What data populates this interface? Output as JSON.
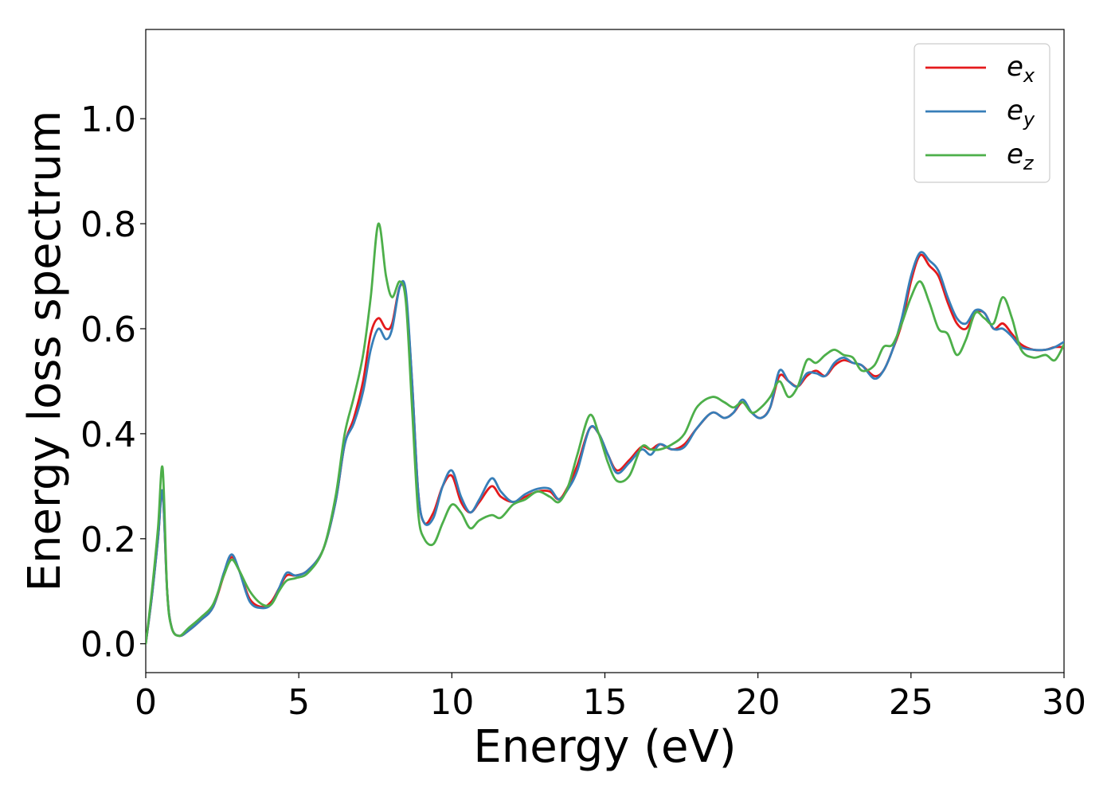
{
  "chart_data": {
    "type": "line",
    "title": "",
    "xlabel": "Energy (eV)",
    "ylabel": "Energy loss spectrum",
    "xlim": [
      0,
      30
    ],
    "ylim": [
      -0.055,
      1.17
    ],
    "xticks": [
      0,
      5,
      10,
      15,
      20,
      25,
      30
    ],
    "xtick_labels": [
      "0",
      "5",
      "10",
      "15",
      "20",
      "25",
      "30"
    ],
    "yticks": [
      0.0,
      0.2,
      0.4,
      0.6,
      0.8,
      1.0
    ],
    "ytick_labels": [
      "0.0",
      "0.2",
      "0.4",
      "0.6",
      "0.8",
      "1.0"
    ],
    "grid": false,
    "legend_position": "top-right",
    "series": [
      {
        "name": "e_x",
        "legend_base": "e",
        "legend_sub": "x",
        "color": "#e41a1c",
        "x": [
          0,
          0.2,
          0.4,
          0.55,
          0.7,
          0.85,
          1.1,
          1.4,
          1.8,
          2.2,
          2.55,
          2.8,
          3.05,
          3.4,
          3.8,
          4.1,
          4.35,
          4.6,
          4.9,
          5.3,
          5.8,
          6.2,
          6.5,
          6.8,
          7.1,
          7.35,
          7.6,
          7.85,
          8.05,
          8.3,
          8.5,
          8.7,
          8.9,
          9.1,
          9.4,
          9.7,
          10.0,
          10.3,
          10.6,
          10.9,
          11.3,
          11.6,
          12.0,
          12.4,
          12.8,
          13.2,
          13.5,
          13.8,
          14.1,
          14.5,
          14.8,
          15.1,
          15.4,
          15.8,
          16.2,
          16.5,
          16.8,
          17.2,
          17.6,
          18.0,
          18.5,
          18.9,
          19.2,
          19.5,
          19.8,
          20.1,
          20.4,
          20.7,
          21.0,
          21.3,
          21.6,
          21.9,
          22.2,
          22.5,
          22.8,
          23.1,
          23.4,
          23.8,
          24.1,
          24.4,
          24.7,
          25.0,
          25.3,
          25.6,
          25.9,
          26.2,
          26.5,
          26.8,
          27.1,
          27.4,
          27.7,
          28.0,
          28.3,
          28.6,
          29.0,
          29.4,
          29.7,
          30.0
        ],
        "y": [
          0.0,
          0.09,
          0.2,
          0.29,
          0.1,
          0.03,
          0.015,
          0.025,
          0.045,
          0.07,
          0.13,
          0.165,
          0.14,
          0.085,
          0.07,
          0.08,
          0.105,
          0.13,
          0.13,
          0.14,
          0.18,
          0.27,
          0.38,
          0.43,
          0.5,
          0.59,
          0.62,
          0.6,
          0.61,
          0.68,
          0.66,
          0.5,
          0.29,
          0.23,
          0.25,
          0.3,
          0.32,
          0.27,
          0.25,
          0.27,
          0.3,
          0.28,
          0.27,
          0.28,
          0.29,
          0.29,
          0.275,
          0.3,
          0.34,
          0.41,
          0.4,
          0.36,
          0.33,
          0.35,
          0.375,
          0.37,
          0.38,
          0.37,
          0.38,
          0.41,
          0.44,
          0.43,
          0.44,
          0.46,
          0.44,
          0.43,
          0.45,
          0.51,
          0.5,
          0.49,
          0.51,
          0.52,
          0.51,
          0.53,
          0.54,
          0.535,
          0.53,
          0.51,
          0.52,
          0.56,
          0.61,
          0.69,
          0.74,
          0.72,
          0.7,
          0.65,
          0.61,
          0.6,
          0.63,
          0.63,
          0.6,
          0.61,
          0.59,
          0.57,
          0.56,
          0.56,
          0.565,
          0.565
        ]
      },
      {
        "name": "e_y",
        "legend_base": "e",
        "legend_sub": "y",
        "color": "#377eb8",
        "x": [
          0,
          0.2,
          0.4,
          0.55,
          0.7,
          0.85,
          1.1,
          1.4,
          1.8,
          2.2,
          2.55,
          2.8,
          3.05,
          3.4,
          3.8,
          4.1,
          4.35,
          4.6,
          4.9,
          5.3,
          5.8,
          6.2,
          6.5,
          6.8,
          7.1,
          7.35,
          7.6,
          7.85,
          8.05,
          8.3,
          8.5,
          8.7,
          8.9,
          9.1,
          9.4,
          9.7,
          10.0,
          10.3,
          10.6,
          10.9,
          11.3,
          11.6,
          12.0,
          12.4,
          12.8,
          13.2,
          13.5,
          13.8,
          14.1,
          14.5,
          14.8,
          15.1,
          15.4,
          15.8,
          16.2,
          16.5,
          16.8,
          17.2,
          17.6,
          18.0,
          18.5,
          18.9,
          19.2,
          19.5,
          19.8,
          20.1,
          20.4,
          20.7,
          21.0,
          21.3,
          21.6,
          21.9,
          22.2,
          22.5,
          22.8,
          23.1,
          23.4,
          23.8,
          24.1,
          24.4,
          24.7,
          25.0,
          25.3,
          25.6,
          25.9,
          26.2,
          26.5,
          26.8,
          27.1,
          27.4,
          27.7,
          28.0,
          28.3,
          28.6,
          29.0,
          29.4,
          29.7,
          30.0
        ],
        "y": [
          0.0,
          0.09,
          0.2,
          0.29,
          0.1,
          0.03,
          0.015,
          0.025,
          0.045,
          0.07,
          0.135,
          0.17,
          0.14,
          0.08,
          0.068,
          0.075,
          0.105,
          0.135,
          0.13,
          0.14,
          0.18,
          0.27,
          0.38,
          0.42,
          0.48,
          0.56,
          0.6,
          0.58,
          0.6,
          0.68,
          0.67,
          0.5,
          0.29,
          0.23,
          0.24,
          0.3,
          0.33,
          0.28,
          0.25,
          0.275,
          0.315,
          0.29,
          0.27,
          0.285,
          0.295,
          0.295,
          0.275,
          0.295,
          0.33,
          0.41,
          0.4,
          0.36,
          0.325,
          0.345,
          0.37,
          0.36,
          0.38,
          0.37,
          0.375,
          0.41,
          0.44,
          0.43,
          0.44,
          0.465,
          0.44,
          0.43,
          0.45,
          0.52,
          0.5,
          0.49,
          0.515,
          0.515,
          0.51,
          0.535,
          0.545,
          0.535,
          0.53,
          0.505,
          0.52,
          0.56,
          0.62,
          0.7,
          0.745,
          0.73,
          0.71,
          0.66,
          0.62,
          0.61,
          0.635,
          0.63,
          0.6,
          0.6,
          0.585,
          0.565,
          0.56,
          0.56,
          0.565,
          0.575
        ]
      },
      {
        "name": "e_z",
        "legend_base": "e",
        "legend_sub": "z",
        "color": "#4daf4a",
        "x": [
          0,
          0.2,
          0.4,
          0.55,
          0.7,
          0.85,
          1.1,
          1.4,
          1.8,
          2.2,
          2.55,
          2.8,
          3.05,
          3.4,
          3.8,
          4.1,
          4.35,
          4.6,
          4.9,
          5.3,
          5.8,
          6.2,
          6.5,
          6.8,
          7.1,
          7.35,
          7.6,
          7.85,
          8.05,
          8.3,
          8.5,
          8.7,
          8.9,
          9.1,
          9.4,
          9.7,
          10.0,
          10.3,
          10.6,
          10.9,
          11.3,
          11.6,
          12.0,
          12.4,
          12.8,
          13.2,
          13.5,
          13.8,
          14.1,
          14.5,
          14.8,
          15.1,
          15.4,
          15.8,
          16.2,
          16.5,
          16.8,
          17.2,
          17.6,
          18.0,
          18.5,
          18.9,
          19.2,
          19.5,
          19.8,
          20.1,
          20.4,
          20.7,
          21.0,
          21.3,
          21.6,
          21.9,
          22.2,
          22.5,
          22.8,
          23.1,
          23.4,
          23.8,
          24.1,
          24.4,
          24.7,
          25.0,
          25.3,
          25.6,
          25.9,
          26.2,
          26.5,
          26.8,
          27.1,
          27.4,
          27.7,
          28.0,
          28.3,
          28.6,
          29.0,
          29.4,
          29.7,
          30.0
        ],
        "y": [
          0.0,
          0.1,
          0.22,
          0.335,
          0.1,
          0.03,
          0.015,
          0.03,
          0.05,
          0.075,
          0.13,
          0.16,
          0.14,
          0.1,
          0.075,
          0.075,
          0.1,
          0.12,
          0.125,
          0.135,
          0.18,
          0.28,
          0.4,
          0.47,
          0.55,
          0.66,
          0.8,
          0.7,
          0.66,
          0.69,
          0.65,
          0.45,
          0.25,
          0.2,
          0.19,
          0.23,
          0.265,
          0.25,
          0.22,
          0.235,
          0.245,
          0.24,
          0.265,
          0.275,
          0.29,
          0.28,
          0.27,
          0.3,
          0.36,
          0.435,
          0.4,
          0.345,
          0.31,
          0.32,
          0.375,
          0.37,
          0.37,
          0.38,
          0.4,
          0.45,
          0.47,
          0.46,
          0.45,
          0.46,
          0.44,
          0.45,
          0.47,
          0.5,
          0.47,
          0.49,
          0.54,
          0.535,
          0.55,
          0.56,
          0.55,
          0.545,
          0.52,
          0.53,
          0.565,
          0.57,
          0.61,
          0.66,
          0.69,
          0.65,
          0.6,
          0.59,
          0.55,
          0.58,
          0.63,
          0.62,
          0.61,
          0.66,
          0.62,
          0.56,
          0.545,
          0.55,
          0.54,
          0.57
        ]
      }
    ]
  }
}
